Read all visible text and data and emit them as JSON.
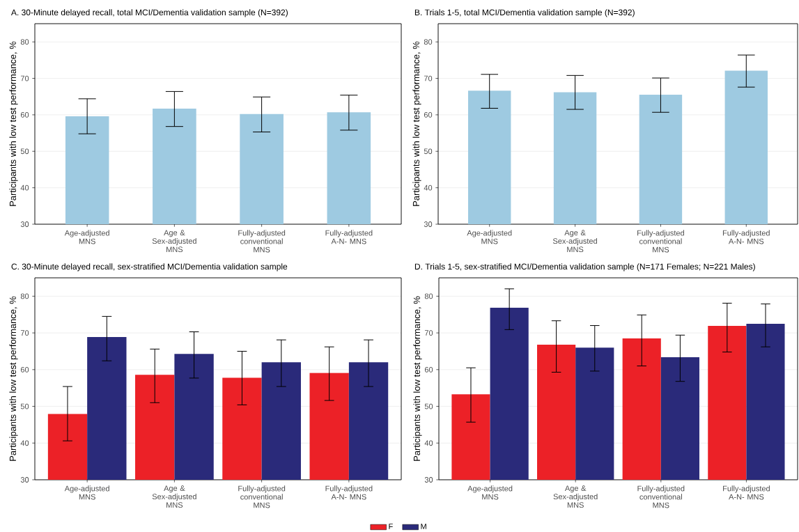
{
  "chart_data": [
    {
      "type": "bar",
      "title": "A. 30-Minute delayed recall, total MCI/Dementia validation sample (N=392)",
      "ylabel": "Participants with low test performance, %",
      "categories": [
        "Age-adjusted MNS",
        "Age & Sex-adjusted MNS",
        "Fully-adjusted conventional MNS",
        "Fully-adjusted A-N- MNS"
      ],
      "values": [
        59.6,
        61.7,
        60.2,
        60.7
      ],
      "errors": [
        [
          54.8,
          64.4
        ],
        [
          56.8,
          66.4
        ],
        [
          55.3,
          64.9
        ],
        [
          55.8,
          65.4
        ]
      ],
      "color": "#9ecae1",
      "ylim": [
        30,
        85
      ],
      "yticks": [
        30,
        40,
        50,
        60,
        70,
        80
      ],
      "grid": "y"
    },
    {
      "type": "bar",
      "title": "B. Trials 1-5, total MCI/Dementia validation sample (N=392)",
      "ylabel": "Participants with low test performance, %",
      "categories": [
        "Age-adjusted MNS",
        "Age & Sex-adjusted MNS",
        "Fully-adjusted conventional MNS",
        "Fully-adjusted A-N- MNS"
      ],
      "values": [
        66.6,
        66.2,
        65.5,
        72.1
      ],
      "errors": [
        [
          61.8,
          71.1
        ],
        [
          61.5,
          70.8
        ],
        [
          60.7,
          70.1
        ],
        [
          67.6,
          76.4
        ]
      ],
      "color": "#9ecae1",
      "ylim": [
        30,
        85
      ],
      "yticks": [
        30,
        40,
        50,
        60,
        70,
        80
      ],
      "grid": "y"
    },
    {
      "type": "bar",
      "title": "C. 30-Minute delayed recall, sex-stratified MCI/Dementia validation sample",
      "ylabel": "Participants with low test performance, %",
      "categories": [
        "Age-adjusted MNS",
        "Age & Sex-adjusted MNS",
        "Fully-adjusted conventional MNS",
        "Fully-adjusted A-N- MNS"
      ],
      "series": [
        {
          "name": "F",
          "color": "#ec2127",
          "values": [
            47.9,
            58.6,
            57.8,
            59.1
          ],
          "errors": [
            [
              40.6,
              55.4
            ],
            [
              51.0,
              65.6
            ],
            [
              50.4,
              65.0
            ],
            [
              51.6,
              66.2
            ]
          ]
        },
        {
          "name": "M",
          "color": "#2a2a7a",
          "values": [
            68.9,
            64.3,
            62.0,
            62.0
          ],
          "errors": [
            [
              62.4,
              74.5
            ],
            [
              57.7,
              70.3
            ],
            [
              55.4,
              68.1
            ],
            [
              55.4,
              68.1
            ]
          ]
        }
      ],
      "ylim": [
        30,
        85
      ],
      "yticks": [
        30,
        40,
        50,
        60,
        70,
        80
      ],
      "grid": "y",
      "legend": "bottom"
    },
    {
      "type": "bar",
      "title": "D. Trials 1-5, sex-stratified MCI/Dementia validation sample (N=171 Females; N=221 Males)",
      "ylabel": "Participants with low test performance, %",
      "categories": [
        "Age-adjusted MNS",
        "Age & Sex-adjusted MNS",
        "Fully-adjusted conventional MNS",
        "Fully-adjusted A-N- MNS"
      ],
      "series": [
        {
          "color": "#ec2127",
          "values": [
            53.3,
            66.8,
            68.5,
            71.9
          ],
          "errors": [
            [
              45.7,
              60.5
            ],
            [
              59.3,
              73.3
            ],
            [
              61.0,
              74.9
            ],
            [
              64.8,
              78.1
            ]
          ]
        },
        {
          "color": "#2a2a7a",
          "values": [
            76.9,
            66.0,
            63.4,
            72.5
          ],
          "errors": [
            [
              70.9,
              82.0
            ],
            [
              59.6,
              72.0
            ],
            [
              56.8,
              69.4
            ],
            [
              66.2,
              77.9
            ]
          ]
        }
      ],
      "ylim": [
        30,
        85
      ],
      "yticks": [
        30,
        40,
        50,
        60,
        70,
        80
      ],
      "grid": "y"
    }
  ]
}
